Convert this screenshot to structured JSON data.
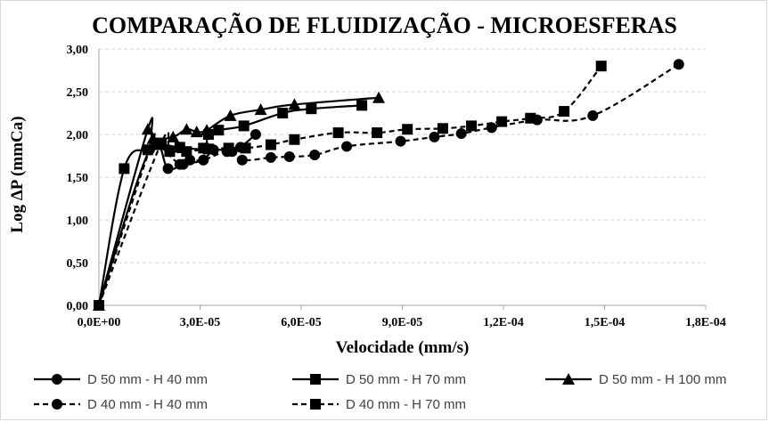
{
  "chart_data": {
    "type": "line",
    "title": "COMPARAÇÃO DE FLUIDIZAÇÃO - MICROESFERAS",
    "xlabel": "Velocidade (mm/s)",
    "ylabel": "Log ΔP (mmCa)",
    "xlim": [
      0,
      0.00018
    ],
    "ylim": [
      0,
      3
    ],
    "xticks": [
      0,
      3e-05,
      6e-05,
      9e-05,
      0.00012,
      0.00015,
      0.00018
    ],
    "xtick_labels": [
      "0,0E+00",
      "3,0E-05",
      "6,0E-05",
      "9,0E-05",
      "1,2E-04",
      "1,5E-04",
      "1,8E-04"
    ],
    "yticks": [
      0,
      0.5,
      1,
      1.5,
      2,
      2.5,
      3
    ],
    "ytick_labels": [
      "0,00",
      "0,50",
      "1,00",
      "1,50",
      "2,00",
      "2,50",
      "3,00"
    ],
    "grid": "y-major-dashed",
    "legend_position": "bottom",
    "series": [
      {
        "name": "D 50 mm - H 40 mm",
        "line": "solid",
        "marker": "circle",
        "points": [
          [
            0,
            0
          ],
          [
            1.5e-05,
            1.82
          ],
          [
            2.05e-05,
            1.6
          ],
          [
            2.5e-05,
            1.65
          ],
          [
            3.1e-05,
            1.7
          ],
          [
            3.4e-05,
            1.82
          ],
          [
            3.95e-05,
            1.8
          ],
          [
            4.2e-05,
            1.85
          ],
          [
            4.65e-05,
            2.0
          ]
        ]
      },
      {
        "name": "D 50 mm - H 70 mm",
        "line": "solid",
        "marker": "square",
        "points": [
          [
            0,
            0
          ],
          [
            7.5e-06,
            1.6
          ],
          [
            1.45e-05,
            1.82
          ],
          [
            1.8e-05,
            1.88
          ],
          [
            2.4e-05,
            1.85
          ],
          [
            3.1e-05,
            1.84
          ],
          [
            3.25e-05,
            2.0
          ],
          [
            3.55e-05,
            2.05
          ],
          [
            4.3e-05,
            2.1
          ],
          [
            5.45e-05,
            2.25
          ],
          [
            6.3e-05,
            2.3
          ],
          [
            7.8e-05,
            2.34
          ]
        ]
      },
      {
        "name": "D 50 mm - H 100 mm",
        "line": "solid",
        "marker": "triangle",
        "points": [
          [
            0,
            0
          ],
          [
            1.45e-05,
            2.06
          ],
          [
            1.6e-05,
            1.95
          ],
          [
            2.2e-05,
            1.97
          ],
          [
            2.6e-05,
            2.06
          ],
          [
            2.9e-05,
            2.03
          ],
          [
            3.2e-05,
            2.05
          ],
          [
            3.9e-05,
            2.22
          ],
          [
            4.8e-05,
            2.29
          ],
          [
            5.8e-05,
            2.35
          ],
          [
            8.3e-05,
            2.43
          ]
        ]
      },
      {
        "name": "D 40 mm - H 40 mm",
        "line": "dashed",
        "marker": "circle",
        "points": [
          [
            0,
            0
          ],
          [
            1.5e-05,
            1.82
          ],
          [
            1.7e-05,
            1.9
          ],
          [
            2.4e-05,
            1.65
          ],
          [
            2.7e-05,
            1.7
          ],
          [
            3.1e-05,
            1.7
          ],
          [
            3.8e-05,
            1.8
          ],
          [
            4.25e-05,
            1.7
          ],
          [
            5.1e-05,
            1.73
          ],
          [
            5.65e-05,
            1.74
          ],
          [
            6.4e-05,
            1.76
          ],
          [
            7.35e-05,
            1.86
          ],
          [
            8.95e-05,
            1.92
          ],
          [
            9.95e-05,
            1.97
          ],
          [
            0.0001075,
            2.01
          ],
          [
            0.0001165,
            2.08
          ],
          [
            0.00013,
            2.17
          ],
          [
            0.0001465,
            2.22
          ],
          [
            0.000172,
            2.82
          ]
        ]
      },
      {
        "name": "D 40 mm - H 70 mm",
        "line": "dashed",
        "marker": "square",
        "points": [
          [
            0,
            0
          ],
          [
            1.85e-05,
            1.9
          ],
          [
            2.1e-05,
            1.8
          ],
          [
            2.6e-05,
            1.8
          ],
          [
            3.25e-05,
            1.83
          ],
          [
            3.85e-05,
            1.84
          ],
          [
            4.35e-05,
            1.84
          ],
          [
            5.1e-05,
            1.88
          ],
          [
            5.8e-05,
            1.94
          ],
          [
            7.1e-05,
            2.02
          ],
          [
            8.25e-05,
            2.02
          ],
          [
            9.15e-05,
            2.06
          ],
          [
            0.000102,
            2.07
          ],
          [
            0.0001105,
            2.1
          ],
          [
            0.0001195,
            2.15
          ],
          [
            0.000128,
            2.19
          ],
          [
            0.000138,
            2.27
          ],
          [
            0.000149,
            2.8
          ]
        ]
      }
    ]
  }
}
